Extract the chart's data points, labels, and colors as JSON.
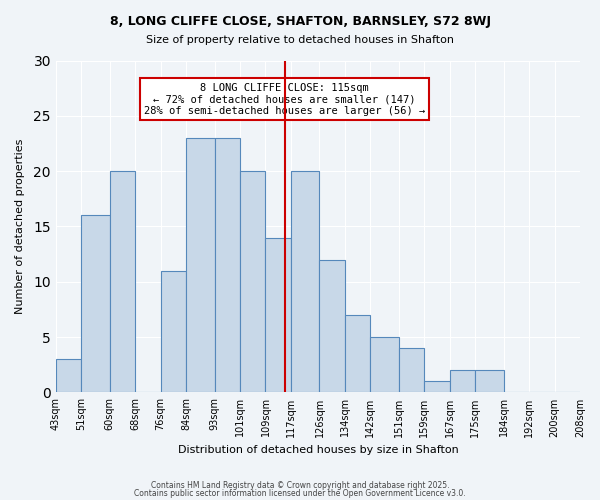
{
  "title": "8, LONG CLIFFE CLOSE, SHAFTON, BARNSLEY, S72 8WJ",
  "subtitle": "Size of property relative to detached houses in Shafton",
  "xlabel": "Distribution of detached houses by size in Shafton",
  "ylabel": "Number of detached properties",
  "bin_labels": [
    "43sqm",
    "51sqm",
    "60sqm",
    "68sqm",
    "76sqm",
    "84sqm",
    "93sqm",
    "101sqm",
    "109sqm",
    "117sqm",
    "126sqm",
    "134sqm",
    "142sqm",
    "151sqm",
    "159sqm",
    "167sqm",
    "175sqm",
    "184sqm",
    "192sqm",
    "200sqm",
    "208sqm"
  ],
  "bin_edges": [
    43,
    51,
    60,
    68,
    76,
    84,
    93,
    101,
    109,
    117,
    126,
    134,
    142,
    151,
    159,
    167,
    175,
    184,
    192,
    200,
    208
  ],
  "counts": [
    3,
    16,
    20,
    0,
    11,
    23,
    23,
    20,
    14,
    20,
    12,
    7,
    5,
    4,
    1,
    2,
    2,
    0,
    0,
    0
  ],
  "bar_color": "#c8d8e8",
  "bar_edge_color": "#5588bb",
  "vline_x": 115,
  "vline_color": "#cc0000",
  "ylim": [
    0,
    30
  ],
  "yticks": [
    0,
    5,
    10,
    15,
    20,
    25,
    30
  ],
  "annotation_title": "8 LONG CLIFFE CLOSE: 115sqm",
  "annotation_line1": "← 72% of detached houses are smaller (147)",
  "annotation_line2": "28% of semi-detached houses are larger (56) →",
  "annotation_box_color": "#cc0000",
  "footer1": "Contains HM Land Registry data © Crown copyright and database right 2025.",
  "footer2": "Contains public sector information licensed under the Open Government Licence v3.0.",
  "bg_color": "#f0f4f8"
}
